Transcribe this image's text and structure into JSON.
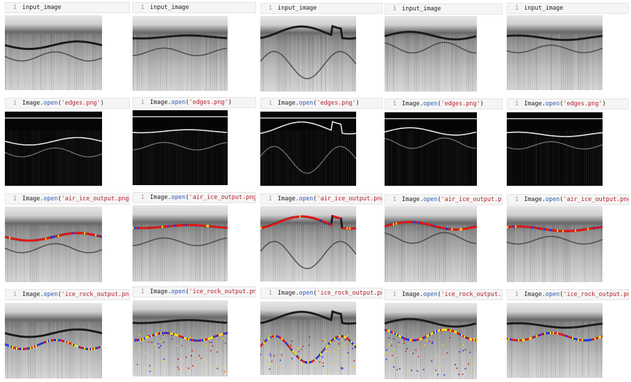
{
  "rows": [
    {
      "kind": "input",
      "code": {
        "line": "1",
        "text": "input_image"
      }
    },
    {
      "kind": "edges",
      "code": {
        "line": "1",
        "obj": "Image.",
        "fn": "open",
        "arg": "'edges.png'",
        "close": ")"
      }
    },
    {
      "kind": "air_ice",
      "code": {
        "line": "1",
        "obj": "Image.",
        "fn": "open",
        "arg": "'air_ice_output.png'",
        "close": ")"
      }
    },
    {
      "kind": "ice_rock",
      "code": {
        "line": "1",
        "obj": "Image.",
        "fn": "open",
        "arg": "'ice_rock_output.png'",
        "close": ")"
      }
    }
  ],
  "colors": {
    "cell_bg": "#f5f5f5",
    "keyword": "#2a5bb8",
    "string": "#b2222b",
    "marker_red": "#e01818",
    "marker_blue": "#2233dd",
    "marker_yellow": "#f2e21a",
    "edges_bg": "#050505"
  }
}
